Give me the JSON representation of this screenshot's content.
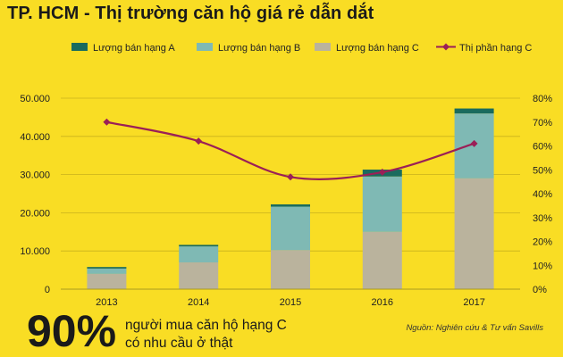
{
  "title": "TP. HCM - Thị trường căn hộ giá rẻ dẫn dắt",
  "stat": {
    "value": "90%",
    "text": "người mua căn hộ hạng C có nhu cầu ở thật"
  },
  "source": "Nguồn: Nghiên cứu & Tư vấn Savills",
  "colors": {
    "background": "#f9dd24",
    "grade_a": "#1a6b5e",
    "grade_b": "#7fb9b4",
    "grade_c": "#bab39d",
    "share_c": "#9b1f57"
  },
  "chart_data": {
    "type": "bar",
    "stacked": true,
    "categories": [
      "2013",
      "2014",
      "2015",
      "2016",
      "2017"
    ],
    "series": [
      {
        "name": "Lượng bán hạng A",
        "type": "bar",
        "axis": "left",
        "color": "#1a6b5e",
        "values": [
          400,
          400,
          600,
          1800,
          1300
        ]
      },
      {
        "name": "Lượng bán hạng B",
        "type": "bar",
        "axis": "left",
        "color": "#7fb9b4",
        "values": [
          1400,
          4200,
          11400,
          14500,
          17000
        ]
      },
      {
        "name": "Lượng bán hạng C",
        "type": "bar",
        "axis": "left",
        "color": "#bab39d",
        "values": [
          4000,
          7000,
          10200,
          15000,
          29000
        ]
      },
      {
        "name": "Thị phần hạng C",
        "type": "line",
        "axis": "right",
        "color": "#9b1f57",
        "values": [
          70,
          62,
          47,
          49,
          61
        ]
      }
    ],
    "ylim_left": [
      0,
      50000
    ],
    "ylim_right": [
      0,
      80
    ],
    "yticks_left": [
      "0",
      "10.000",
      "20.000",
      "30.000",
      "40.000",
      "50.000"
    ],
    "yticks_right": [
      "0%",
      "10%",
      "20%",
      "30%",
      "40%",
      "50%",
      "60%",
      "70%",
      "80%"
    ],
    "grid": true,
    "legend_position": "top"
  }
}
